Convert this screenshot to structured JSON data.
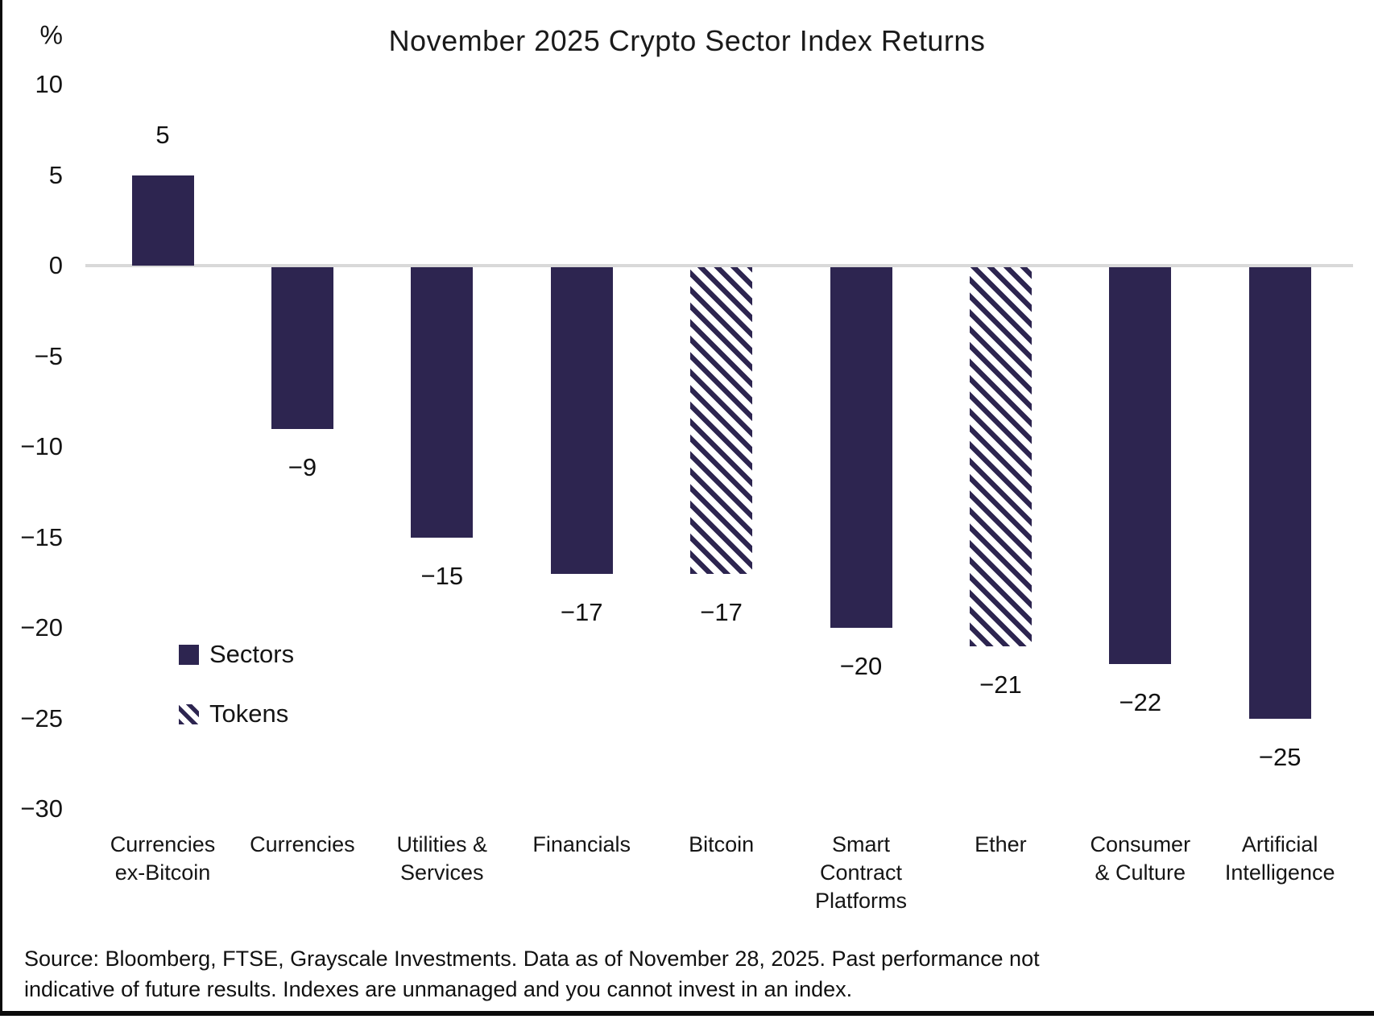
{
  "title": "November 2025 Crypto Sector Index Returns",
  "y_axis": {
    "unit": "%"
  },
  "legend": {
    "sectors_label": "Sectors",
    "tokens_label": "Tokens"
  },
  "footnote": {
    "lines": [
      "Source: Bloomberg, FTSE, Grayscale Investments. Data as of November 28, 2025. Past performance not",
      "indicative of future results. Indexes are unmanaged and you cannot invest in an index."
    ]
  },
  "chart_data": {
    "type": "bar",
    "title": "November 2025 Crypto Sector Index Returns",
    "ylabel": "%",
    "xlabel": "",
    "ylim": [
      -30,
      10
    ],
    "grid": false,
    "legend_position": "middle-left",
    "bar_color": "#2d2550",
    "zero_line_color": "#d9d9d9",
    "yticks": [
      {
        "value": 10,
        "label": "10"
      },
      {
        "value": 5,
        "label": "5"
      },
      {
        "value": 0,
        "label": "0"
      },
      {
        "value": -5,
        "label": "−5"
      },
      {
        "value": -10,
        "label": "−10"
      },
      {
        "value": -15,
        "label": "−15"
      },
      {
        "value": -20,
        "label": "−20"
      },
      {
        "value": -25,
        "label": "−25"
      },
      {
        "value": -30,
        "label": "−30"
      }
    ],
    "series": [
      {
        "name": "Sectors",
        "style": "solid"
      },
      {
        "name": "Tokens",
        "style": "hatched-diagonal"
      }
    ],
    "bars": [
      {
        "category": "Currencies ex-Bitcoin",
        "category_lines": [
          "Currencies",
          "ex-Bitcoin"
        ],
        "value": 5,
        "label": "5",
        "group": "Sectors"
      },
      {
        "category": "Currencies",
        "category_lines": [
          "Currencies"
        ],
        "value": -9,
        "label": "−9",
        "group": "Sectors"
      },
      {
        "category": "Utilities & Services",
        "category_lines": [
          "Utilities &",
          "Services"
        ],
        "value": -15,
        "label": "−15",
        "group": "Sectors"
      },
      {
        "category": "Financials",
        "category_lines": [
          "Financials"
        ],
        "value": -17,
        "label": "−17",
        "group": "Sectors"
      },
      {
        "category": "Bitcoin",
        "category_lines": [
          "Bitcoin"
        ],
        "value": -17,
        "label": "−17",
        "group": "Tokens"
      },
      {
        "category": "Smart Contract Platforms",
        "category_lines": [
          "Smart",
          "Contract",
          "Platforms"
        ],
        "value": -20,
        "label": "−20",
        "group": "Sectors"
      },
      {
        "category": "Ether",
        "category_lines": [
          "Ether"
        ],
        "value": -21,
        "label": "−21",
        "group": "Tokens"
      },
      {
        "category": "Consumer & Culture",
        "category_lines": [
          "Consumer",
          "& Culture"
        ],
        "value": -22,
        "label": "−22",
        "group": "Sectors"
      },
      {
        "category": "Artificial Intelligence",
        "category_lines": [
          "Artificial",
          "Intelligence"
        ],
        "value": -25,
        "label": "−25",
        "group": "Sectors"
      }
    ]
  }
}
